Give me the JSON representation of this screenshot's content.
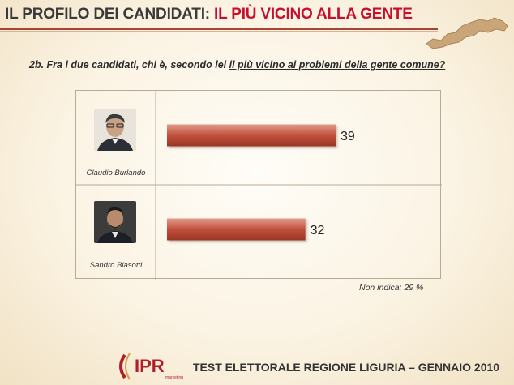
{
  "header": {
    "title_part1": "IL PROFILO DEI CANDIDATI:",
    "title_part2": "IL PIÙ VICINO ALLA GENTE"
  },
  "question": {
    "prefix": "2b. Fra i due candidati, chi è, secondo lei ",
    "underlined": "il più vicino ai problemi della gente comune?"
  },
  "chart_data": {
    "type": "bar",
    "orientation": "horizontal",
    "categories": [
      "Claudio Burlando",
      "Sandro Biasotti"
    ],
    "values": [
      39,
      32
    ],
    "xlim": [
      0,
      60
    ],
    "bar_color": "#c0503c",
    "grid": false,
    "data_labels": [
      "39",
      "32"
    ]
  },
  "footnote": "Non indica: 29 %",
  "footer": {
    "logo_text": "IPR",
    "logo_sub": "marketing",
    "title": "TEST ELETTORALE  REGIONE LIGURIA – GENNAIO 2010"
  },
  "colors": {
    "accent_red": "#c8102e",
    "bar": "#c0503c",
    "rule": "#a9442e"
  }
}
